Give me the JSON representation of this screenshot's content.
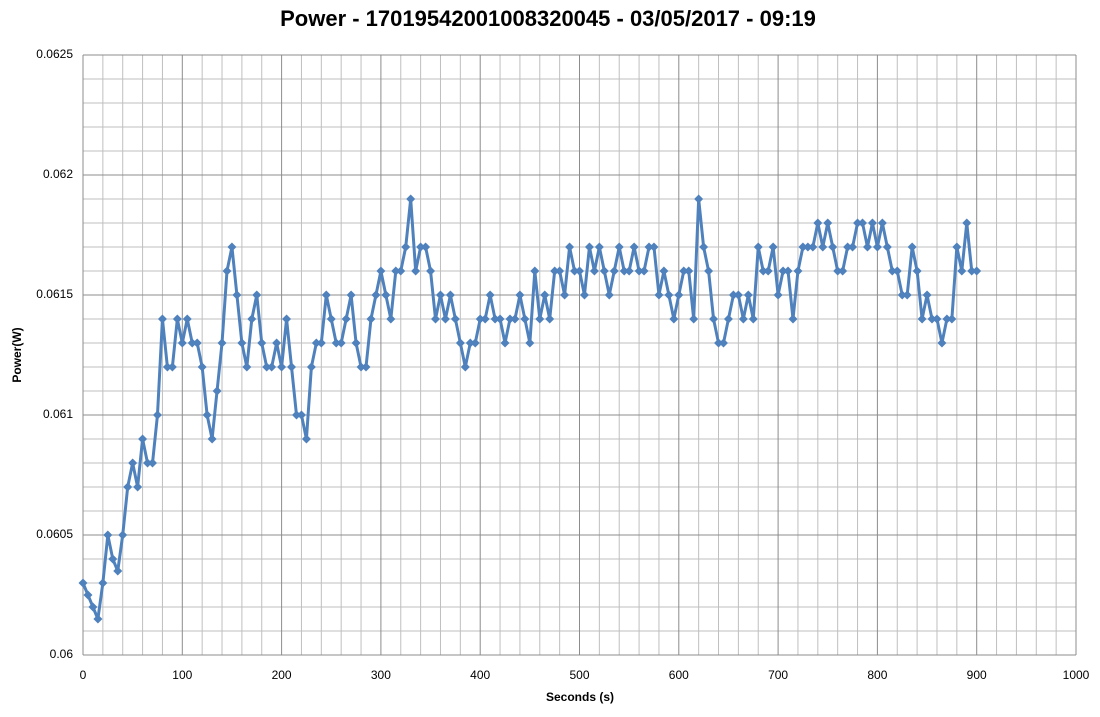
{
  "chart_data": {
    "type": "line",
    "title": "Power - 17019542001008320045 - 03/05/2017 - 09:19",
    "x_label": "Seconds (s)",
    "y_label": "Power(W)",
    "xlim": [
      0,
      1000
    ],
    "xticks": [
      0,
      100,
      200,
      300,
      400,
      500,
      600,
      700,
      800,
      900,
      1000
    ],
    "ylim": [
      0.06,
      0.0625
    ],
    "yticks": [
      0.06,
      0.0605,
      0.061,
      0.0615,
      0.062,
      0.0625
    ],
    "grid": true,
    "minor_grid": 5,
    "marker": "diamond",
    "series": [
      {
        "name": "Power",
        "color": "#4f81bd",
        "x": [
          0,
          5,
          10,
          15,
          20,
          25,
          30,
          35,
          40,
          45,
          50,
          55,
          60,
          65,
          70,
          75,
          80,
          85,
          90,
          95,
          100,
          105,
          110,
          115,
          120,
          125,
          130,
          135,
          140,
          145,
          150,
          155,
          160,
          165,
          170,
          175,
          180,
          185,
          190,
          195,
          200,
          205,
          210,
          215,
          220,
          225,
          230,
          235,
          240,
          245,
          250,
          255,
          260,
          265,
          270,
          275,
          280,
          285,
          290,
          295,
          300,
          305,
          310,
          315,
          320,
          325,
          330,
          335,
          340,
          345,
          350,
          355,
          360,
          365,
          370,
          375,
          380,
          385,
          390,
          395,
          400,
          405,
          410,
          415,
          420,
          425,
          430,
          435,
          440,
          445,
          450,
          455,
          460,
          465,
          470,
          475,
          480,
          485,
          490,
          495,
          500,
          505,
          510,
          515,
          520,
          525,
          530,
          535,
          540,
          545,
          550,
          555,
          560,
          565,
          570,
          575,
          580,
          585,
          590,
          595,
          600,
          605,
          610,
          615,
          620,
          625,
          630,
          635,
          640,
          645,
          650,
          655,
          660,
          665,
          670,
          675,
          680,
          685,
          690,
          695,
          700,
          705,
          710,
          715,
          720,
          725,
          730,
          735,
          740,
          745,
          750,
          755,
          760,
          765,
          770,
          775,
          780,
          785,
          790,
          795,
          800,
          805,
          810,
          815,
          820,
          825,
          830,
          835,
          840,
          845,
          850,
          855,
          860,
          865,
          870,
          875,
          880,
          885,
          890,
          895,
          900
        ],
        "values": [
          0.0603,
          0.06025,
          0.0602,
          0.06015,
          0.0603,
          0.0605,
          0.0604,
          0.06035,
          0.0605,
          0.0607,
          0.0608,
          0.0607,
          0.0609,
          0.0608,
          0.0608,
          0.061,
          0.0614,
          0.0612,
          0.0612,
          0.0614,
          0.0613,
          0.0614,
          0.0613,
          0.0613,
          0.0612,
          0.061,
          0.0609,
          0.0611,
          0.0613,
          0.0616,
          0.0617,
          0.0615,
          0.0613,
          0.0612,
          0.0614,
          0.0615,
          0.0613,
          0.0612,
          0.0612,
          0.0613,
          0.0612,
          0.0614,
          0.0612,
          0.061,
          0.061,
          0.0609,
          0.0612,
          0.0613,
          0.0613,
          0.0615,
          0.0614,
          0.0613,
          0.0613,
          0.0614,
          0.0615,
          0.0613,
          0.0612,
          0.0612,
          0.0614,
          0.0615,
          0.0616,
          0.0615,
          0.0614,
          0.0616,
          0.0616,
          0.0617,
          0.0619,
          0.0616,
          0.0617,
          0.0617,
          0.0616,
          0.0614,
          0.0615,
          0.0614,
          0.0615,
          0.0614,
          0.0613,
          0.0612,
          0.0613,
          0.0613,
          0.0614,
          0.0614,
          0.0615,
          0.0614,
          0.0614,
          0.0613,
          0.0614,
          0.0614,
          0.0615,
          0.0614,
          0.0613,
          0.0616,
          0.0614,
          0.0615,
          0.0614,
          0.0616,
          0.0616,
          0.0615,
          0.0617,
          0.0616,
          0.0616,
          0.0615,
          0.0617,
          0.0616,
          0.0617,
          0.0616,
          0.0615,
          0.0616,
          0.0617,
          0.0616,
          0.0616,
          0.0617,
          0.0616,
          0.0616,
          0.0617,
          0.0617,
          0.0615,
          0.0616,
          0.0615,
          0.0614,
          0.0615,
          0.0616,
          0.0616,
          0.0614,
          0.0619,
          0.0617,
          0.0616,
          0.0614,
          0.0613,
          0.0613,
          0.0614,
          0.0615,
          0.0615,
          0.0614,
          0.0615,
          0.0614,
          0.0617,
          0.0616,
          0.0616,
          0.0617,
          0.0615,
          0.0616,
          0.0616,
          0.0614,
          0.0616,
          0.0617,
          0.0617,
          0.0617,
          0.0618,
          0.0617,
          0.0618,
          0.0617,
          0.0616,
          0.0616,
          0.0617,
          0.0617,
          0.0618,
          0.0618,
          0.0617,
          0.0618,
          0.0617,
          0.0618,
          0.0617,
          0.0616,
          0.0616,
          0.0615,
          0.0615,
          0.0617,
          0.0616,
          0.0614,
          0.0615,
          0.0614,
          0.0614,
          0.0613,
          0.0614,
          0.0614,
          0.0617,
          0.0616,
          0.0618,
          0.0616,
          0.0616
        ]
      }
    ]
  }
}
